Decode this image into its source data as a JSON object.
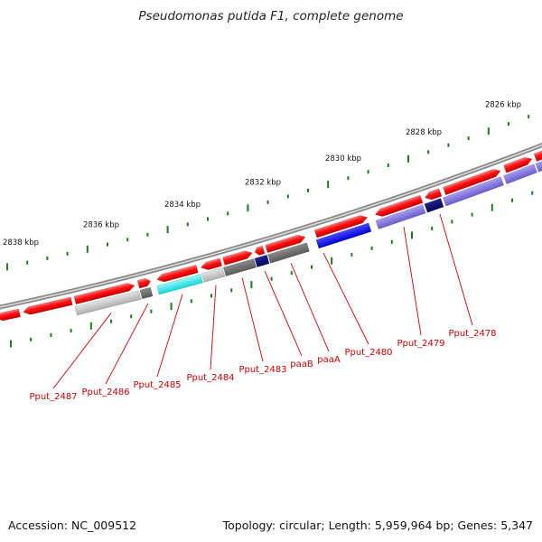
{
  "title": "Pseudomonas putida F1, complete genome",
  "footer": {
    "accession": "Accession: NC_009512",
    "summary": "Topology: circular; Length: 5,959,964 bp; Genes: 5,347"
  },
  "colors": {
    "forward_cds": "#e8000b",
    "highlight_blue": "#0a0ae0",
    "highlight_cyan": "#22e6e6",
    "highlight_navy": "#0a0a70",
    "highlight_purple": "#7b6fd8",
    "grey_light": "#c8c8c8",
    "grey_dark": "#6e6e6e",
    "backbone": "#8a8a8a",
    "tick": "#1e7a1e",
    "gene_label": "#cc0000"
  },
  "scale_labels": [
    {
      "name": "2838 kbp"
    },
    {
      "name": "2836 kbp"
    },
    {
      "name": "2834 kbp"
    },
    {
      "name": "2832 kbp"
    },
    {
      "name": "2830 kbp"
    },
    {
      "name": "2828 kbp"
    },
    {
      "name": "2826 kbp"
    }
  ],
  "gene_labels": [
    {
      "name": "Pput_2487"
    },
    {
      "name": "Pput_2486"
    },
    {
      "name": "Pput_2485"
    },
    {
      "name": "Pput_2484"
    },
    {
      "name": "Pput_2483"
    },
    {
      "name": "paaB"
    },
    {
      "name": "paaA"
    },
    {
      "name": "Pput_2480"
    },
    {
      "name": "Pput_2479"
    },
    {
      "name": "Pput_2478"
    }
  ]
}
